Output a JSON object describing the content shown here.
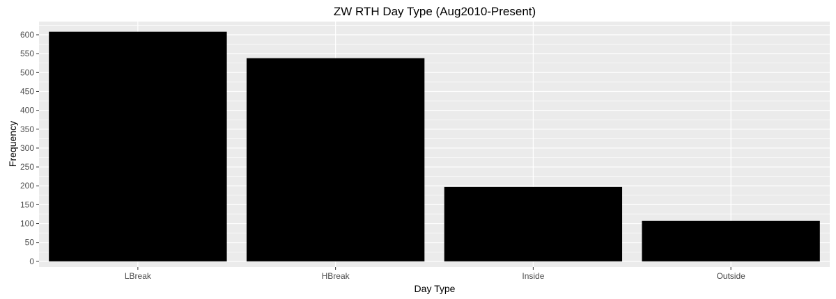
{
  "chart_data": {
    "type": "bar",
    "title": "ZW RTH Day Type (Aug2010-Present)",
    "xlabel": "Day Type",
    "ylabel": "Frequency",
    "categories": [
      "LBreak",
      "HBreak",
      "Inside",
      "Outside"
    ],
    "values": [
      608,
      538,
      197,
      107
    ],
    "ylim": [
      -15,
      635
    ],
    "yticks": [
      0,
      50,
      100,
      150,
      200,
      250,
      300,
      350,
      400,
      450,
      500,
      550,
      600
    ],
    "grid": true,
    "legend": "none",
    "colors": {
      "bar": "#000000",
      "panel_background": "#ebebeb",
      "grid": "#ffffff",
      "tick_label": "#4d4d4d"
    }
  }
}
